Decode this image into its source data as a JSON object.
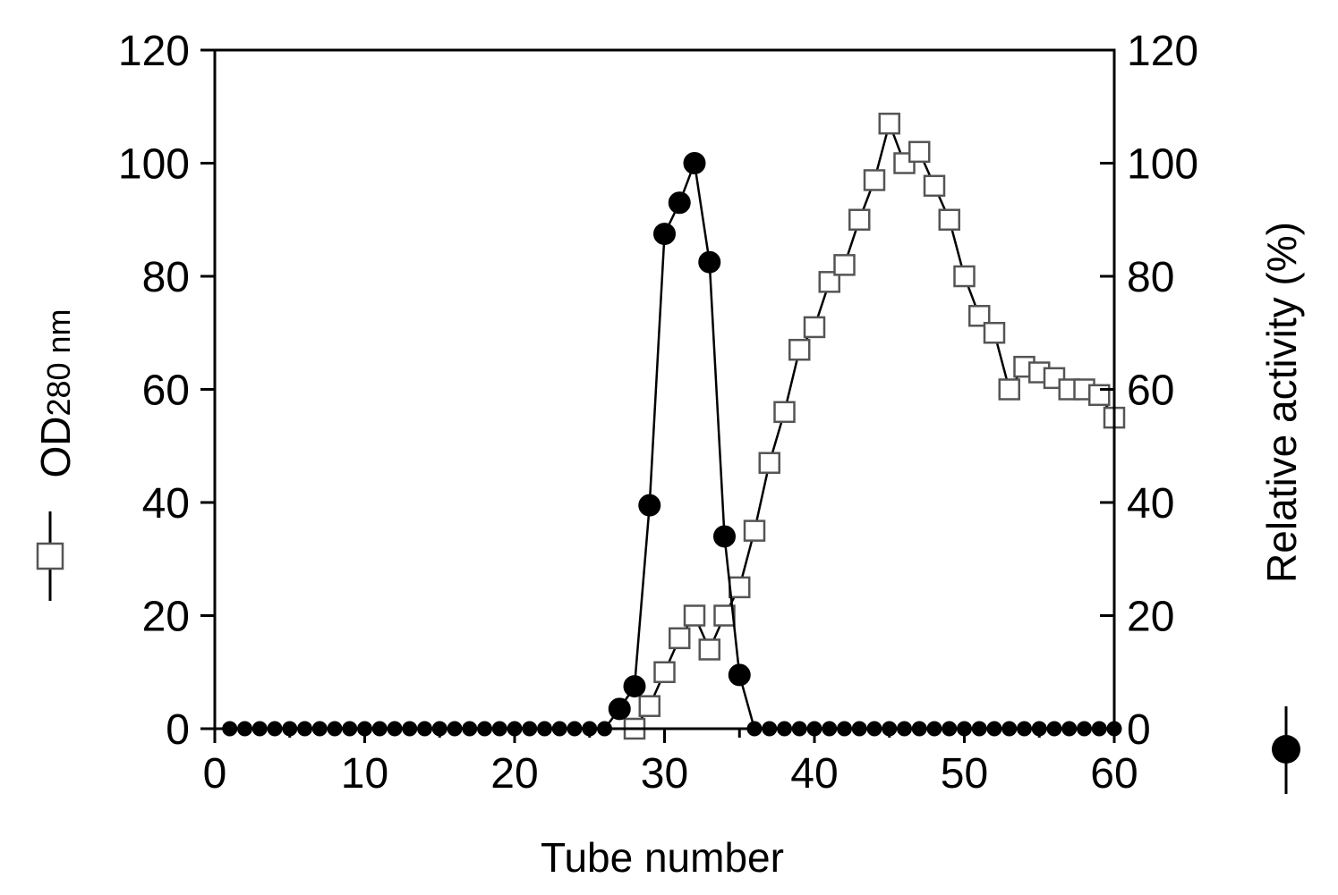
{
  "chart_data": {
    "type": "line",
    "xlabel": "Tube number",
    "ylabel": {
      "main": "OD",
      "sub": "280",
      "suffix": " nm"
    },
    "y2label": "Relative activity (%)",
    "xlim": [
      0,
      60
    ],
    "ylim": [
      0,
      120
    ],
    "y2lim": [
      0,
      120
    ],
    "xticks": [
      0,
      10,
      20,
      30,
      40,
      50,
      60
    ],
    "yticks": [
      0,
      20,
      40,
      60,
      80,
      100,
      120
    ],
    "y2ticks": [
      0,
      20,
      40,
      60,
      80,
      100,
      120
    ],
    "grid": false,
    "series": [
      {
        "axis": "left",
        "marker": "open-square",
        "x": [
          28,
          29,
          30,
          31,
          32,
          33,
          34,
          35,
          36,
          37,
          38,
          39,
          40,
          41,
          42,
          43,
          44,
          45,
          46,
          47,
          48,
          49,
          50,
          51,
          52,
          53,
          54,
          55,
          56,
          57,
          58,
          59,
          60
        ],
        "y": [
          0,
          4,
          10,
          16,
          20,
          14,
          20,
          25,
          35,
          47,
          56,
          67,
          71,
          79,
          82,
          90,
          97,
          107,
          100,
          102,
          96,
          90,
          80,
          73,
          70,
          60,
          64,
          63,
          62,
          60,
          60,
          59,
          55
        ]
      },
      {
        "axis": "right",
        "marker": "filled-circle",
        "x": [
          1,
          2,
          3,
          4,
          5,
          6,
          7,
          8,
          9,
          10,
          11,
          12,
          13,
          14,
          15,
          16,
          17,
          18,
          19,
          20,
          21,
          22,
          23,
          24,
          25,
          26,
          27,
          28,
          29,
          30,
          31,
          32,
          33,
          34,
          35,
          36,
          37,
          38,
          39,
          40,
          41,
          42,
          43,
          44,
          45,
          46,
          47,
          48,
          49,
          50,
          51,
          52,
          53,
          54,
          55,
          56,
          57,
          58,
          59,
          60
        ],
        "y": [
          0,
          0,
          0,
          0,
          0,
          0,
          0,
          0,
          0,
          0,
          0,
          0,
          0,
          0,
          0,
          0,
          0,
          0,
          0,
          0,
          0,
          0,
          0,
          0,
          0,
          0,
          3.5,
          7.5,
          39.5,
          87.5,
          93,
          100,
          82.5,
          34,
          9.5,
          0,
          0,
          0,
          0,
          0,
          0,
          0,
          0,
          0,
          0,
          0,
          0,
          0,
          0,
          0,
          0,
          0,
          0,
          0,
          0,
          0,
          0,
          0,
          0,
          0
        ]
      }
    ]
  }
}
